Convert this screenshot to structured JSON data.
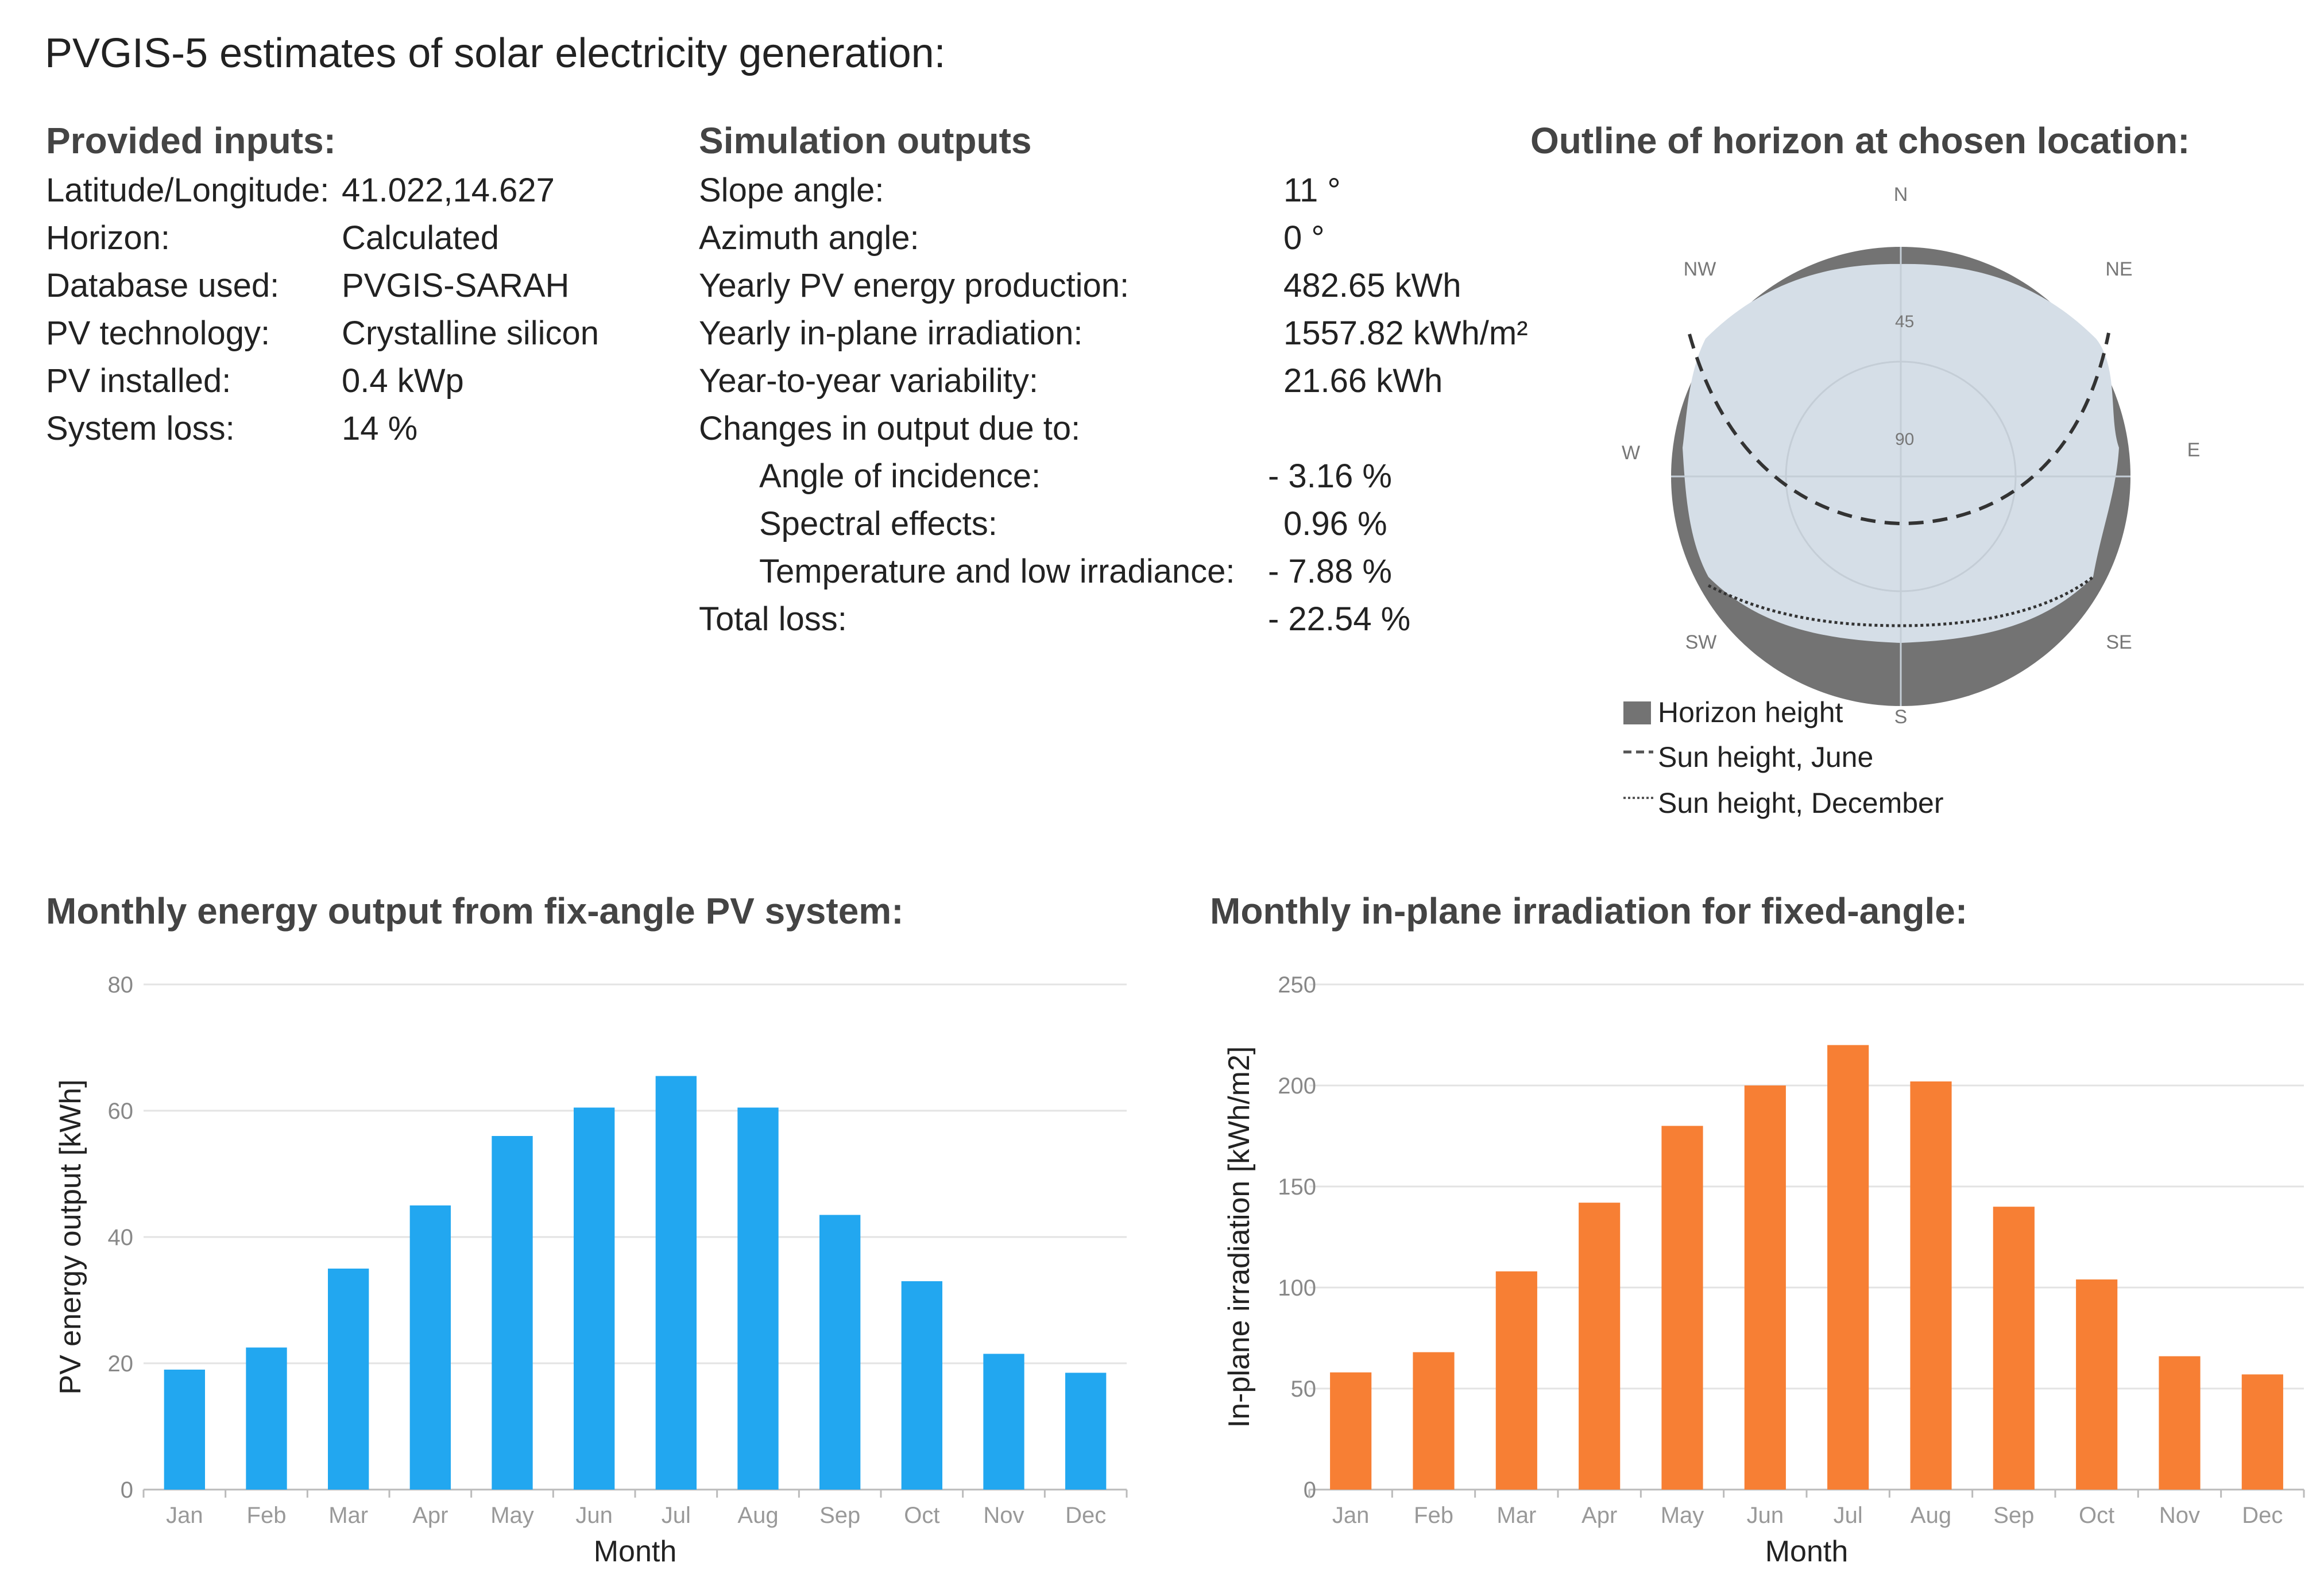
{
  "page": {
    "title": "PVGIS-5 estimates of solar electricity generation:"
  },
  "inputs": {
    "heading": "Provided inputs:",
    "rows": [
      {
        "label": "Latitude/Longitude:",
        "value": "41.022,14.627"
      },
      {
        "label": "Horizon:",
        "value": "Calculated"
      },
      {
        "label": "Database used:",
        "value": "PVGIS-SARAH"
      },
      {
        "label": "PV technology:",
        "value": "Crystalline silicon"
      },
      {
        "label": "PV installed:",
        "value": "0.4 kWp"
      },
      {
        "label": "System loss:",
        "value": "14 %"
      }
    ]
  },
  "outputs": {
    "heading": "Simulation outputs",
    "rows": [
      {
        "label": "Slope angle:",
        "value": "11 °"
      },
      {
        "label": "Azimuth angle:",
        "value": "0 °"
      },
      {
        "label": "Yearly PV energy production:",
        "value": "482.65 kWh"
      },
      {
        "label": "Yearly in-plane irradiation:",
        "value": "1557.82 kWh/m²"
      },
      {
        "label": "Year-to-year variability:",
        "value": "21.66 kWh"
      },
      {
        "label": "Changes in output due to:",
        "value": ""
      },
      {
        "label": "Angle of incidence:",
        "value": "- 3.16 %"
      },
      {
        "label": "Spectral effects:",
        "value": "0.96 %"
      },
      {
        "label": "Temperature and low irradiance:",
        "value": "- 7.88 %"
      },
      {
        "label": "Total loss:",
        "value": "- 22.54 %"
      }
    ]
  },
  "horizon": {
    "heading": "Outline of horizon at chosen location:",
    "compass": {
      "N": "N",
      "NE": "NE",
      "E": "E",
      "SE": "SE",
      "S": "S",
      "SW": "SW",
      "W": "W",
      "NW": "NW"
    },
    "rings": {
      "r45": "45",
      "r90": "90"
    },
    "legend": {
      "horizon": "Horizon height",
      "june": "Sun height, June",
      "december": "Sun height, December"
    },
    "colors": {
      "sky": "#D5DEE7",
      "horizon": "#737373",
      "sun": "#333333"
    }
  },
  "chart_data": [
    {
      "type": "bar",
      "title": "Monthly energy output from fix-angle PV system:",
      "xlabel": "Month",
      "ylabel": "PV energy output [kWh]",
      "categories": [
        "Jan",
        "Feb",
        "Mar",
        "Apr",
        "May",
        "Jun",
        "Jul",
        "Aug",
        "Sep",
        "Oct",
        "Nov",
        "Dec"
      ],
      "values": [
        19,
        22.5,
        35,
        45,
        56,
        60.5,
        65.5,
        60.5,
        43.5,
        33,
        21.5,
        18.5
      ],
      "ylim": [
        0,
        80
      ],
      "yticks": [
        0,
        20,
        40,
        60,
        80
      ],
      "color": "#22A7F0"
    },
    {
      "type": "bar",
      "title": "Monthly in-plane irradiation for fixed-angle:",
      "xlabel": "Month",
      "ylabel": "In-plane irradiation [kWh/m2]",
      "categories": [
        "Jan",
        "Feb",
        "Mar",
        "Apr",
        "May",
        "Jun",
        "Jul",
        "Aug",
        "Sep",
        "Oct",
        "Nov",
        "Dec"
      ],
      "values": [
        58,
        68,
        108,
        142,
        180,
        200,
        220,
        202,
        140,
        104,
        66,
        57
      ],
      "ylim": [
        0,
        250
      ],
      "yticks": [
        0,
        50,
        100,
        150,
        200,
        250
      ],
      "color": "#F77F34"
    }
  ]
}
